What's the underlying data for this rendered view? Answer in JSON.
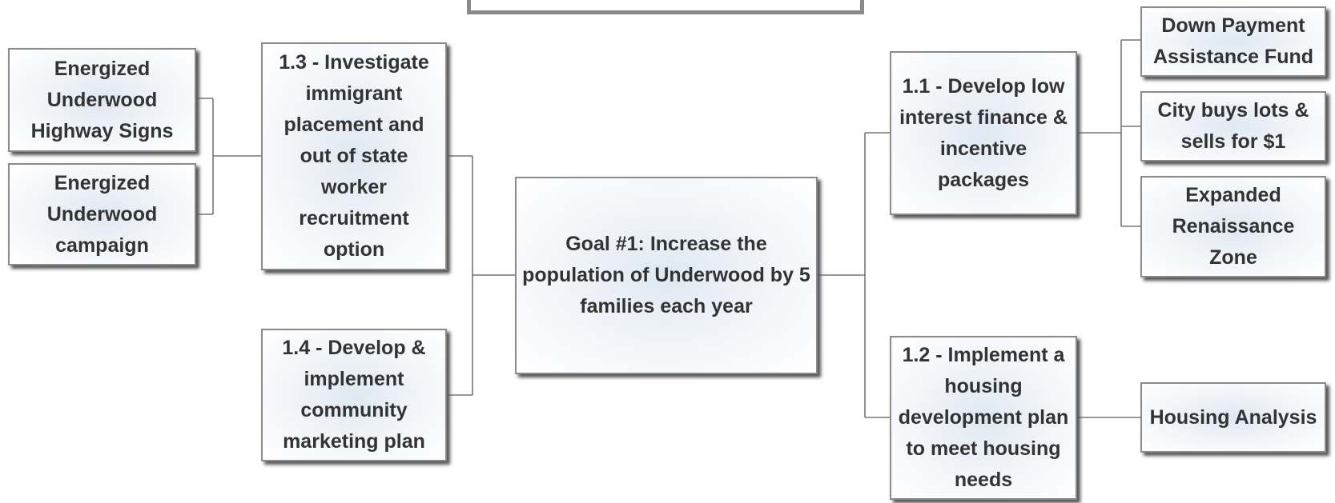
{
  "nodes": [
    {
      "id": "goal",
      "label": "Goal #1: Increase the population of Underwood by 5 families each year"
    },
    {
      "id": "s13",
      "label": "1.3 - Investigate immigrant placement and out of state worker recruitment option"
    },
    {
      "id": "s14",
      "label": "1.4 - Develop & implement community marketing plan"
    },
    {
      "id": "e1",
      "label": "Energized Underwood Highway Signs"
    },
    {
      "id": "e2",
      "label": "Energized Underwood campaign"
    },
    {
      "id": "s11",
      "label": "1.1 - Develop low interest finance & incentive packages"
    },
    {
      "id": "s12",
      "label": "1.2 - Implement a housing development plan to meet housing needs"
    },
    {
      "id": "dp",
      "label": "Down Payment Assistance Fund"
    },
    {
      "id": "cb",
      "label": "City buys lots & sells for $1"
    },
    {
      "id": "ex",
      "label": "Expanded Renaissance Zone"
    },
    {
      "id": "ha",
      "label": "Housing Analysis"
    }
  ]
}
